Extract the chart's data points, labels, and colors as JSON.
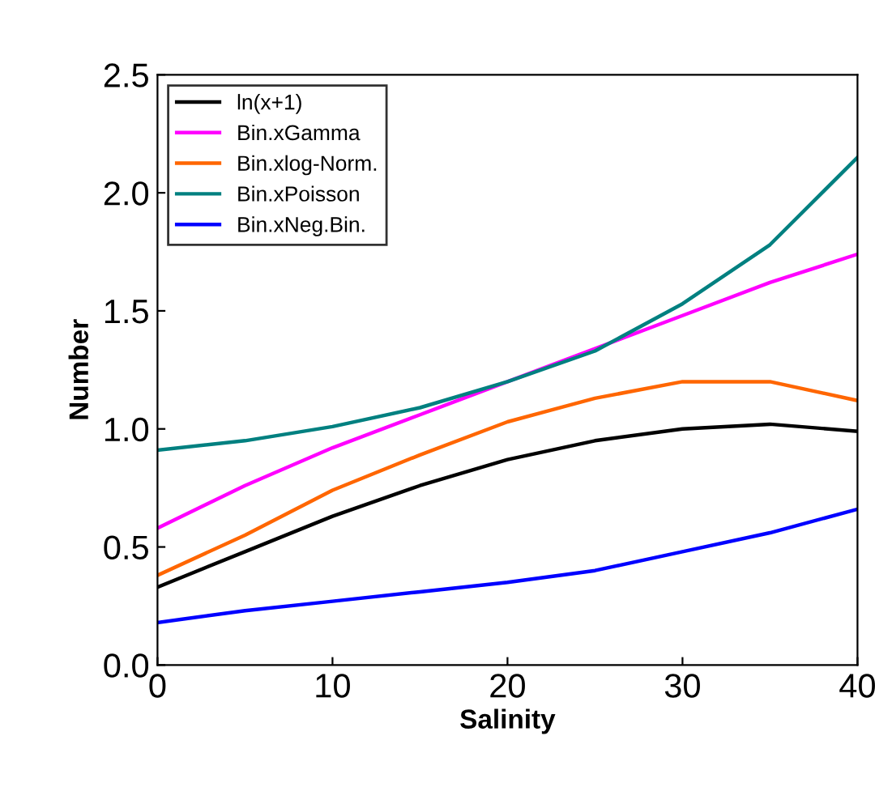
{
  "chart_data": {
    "type": "line",
    "xlabel": "Salinity",
    "ylabel": "Number",
    "x": [
      0,
      5,
      10,
      15,
      20,
      25,
      30,
      35,
      40
    ],
    "series": [
      {
        "name": "ln(x+1)",
        "color": "#000000",
        "values": [
          0.33,
          0.48,
          0.63,
          0.76,
          0.87,
          0.95,
          1.0,
          1.02,
          0.99
        ]
      },
      {
        "name": "Bin.xGamma",
        "color": "#ff00ff",
        "values": [
          0.58,
          0.76,
          0.92,
          1.06,
          1.2,
          1.34,
          1.48,
          1.62,
          1.74
        ]
      },
      {
        "name": "Bin.xlog-Norm.",
        "color": "#ff6600",
        "values": [
          0.38,
          0.55,
          0.74,
          0.89,
          1.03,
          1.13,
          1.2,
          1.2,
          1.12
        ]
      },
      {
        "name": "Bin.xPoisson",
        "color": "#008080",
        "values": [
          0.91,
          0.95,
          1.01,
          1.09,
          1.2,
          1.33,
          1.53,
          1.78,
          2.15
        ]
      },
      {
        "name": "Bin.xNeg.Bin.",
        "color": "#0000ff",
        "values": [
          0.18,
          0.23,
          0.27,
          0.31,
          0.35,
          0.4,
          0.48,
          0.56,
          0.66
        ]
      }
    ],
    "xlim": [
      0,
      40
    ],
    "xticks": [
      0,
      10,
      20,
      30,
      40
    ],
    "ylim": [
      0,
      2.5
    ],
    "yticks": [
      {
        "value": 0,
        "label": "0.0"
      },
      {
        "value": 0.5,
        "label": "0.5"
      },
      {
        "value": 1,
        "label": "1.0"
      },
      {
        "value": 1.5,
        "label": "1.5"
      },
      {
        "value": 2,
        "label": "2.0"
      },
      {
        "value": 2.5,
        "label": "2.5"
      }
    ],
    "grid": false,
    "legend": "top left",
    "marker": "none",
    "line_style": "solid"
  }
}
